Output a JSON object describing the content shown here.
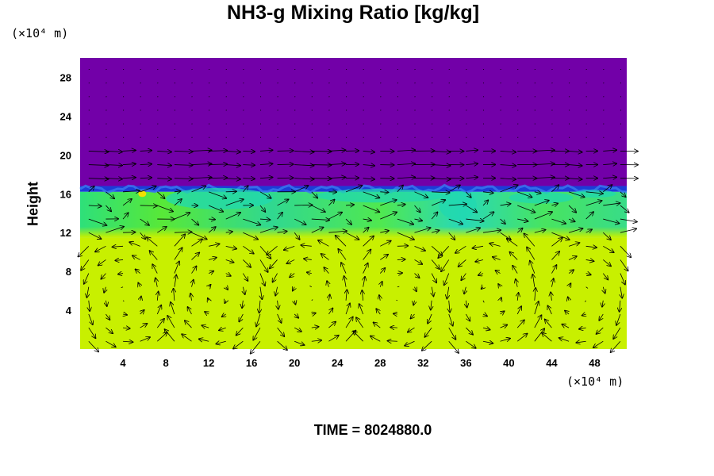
{
  "chart_data": {
    "type": "heatmap",
    "title": "NH3-g Mixing Ratio [kg/kg]",
    "ylabel": "Height",
    "y_unit": "(×10⁴ m)",
    "x_unit": "(×10⁴ m)",
    "xlim": [
      0,
      51
    ],
    "ylim": [
      0,
      30
    ],
    "x_ticks": [
      4,
      8,
      12,
      16,
      20,
      24,
      28,
      32,
      36,
      40,
      44,
      48
    ],
    "y_ticks": [
      4,
      8,
      12,
      16,
      20,
      24,
      28
    ],
    "colors": {
      "upper": "#7200a8",
      "boundary": "#1c3cd8",
      "transition": "#20d8b0",
      "mixed": "#40e040",
      "lower": "#c8f000",
      "hotspot": "#f0e000"
    },
    "layers": [
      {
        "name": "upper",
        "y_from": 16.8,
        "y_to": 30
      },
      {
        "name": "boundary",
        "y_from": 16.2,
        "y_to": 16.8
      },
      {
        "name": "mixed",
        "y_from": 11.5,
        "y_to": 16.2
      },
      {
        "name": "lower",
        "y_from": 0,
        "y_to": 11.5
      }
    ],
    "vector_field": {
      "type": "wind-arrows",
      "cells_x": 6,
      "cells_y": 1
    }
  },
  "footer": {
    "time": "TIME = 8024880.0"
  }
}
